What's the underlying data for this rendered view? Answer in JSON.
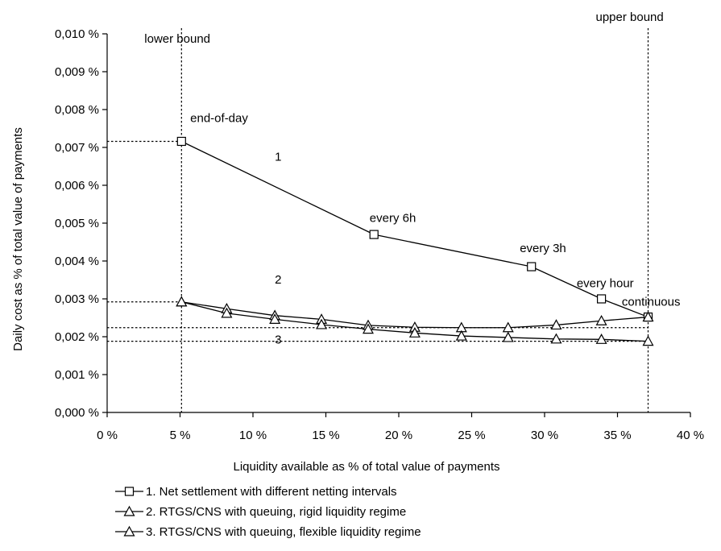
{
  "chart_data": {
    "type": "line",
    "xlabel": "Liquidity available as % of total value of payments",
    "ylabel": "Daily cost as % of total value of payments",
    "xlim": [
      0,
      40
    ],
    "ylim": [
      0,
      0.01
    ],
    "x_ticks": [
      0,
      5,
      10,
      15,
      20,
      25,
      30,
      35,
      40
    ],
    "x_tick_labels": [
      "0 %",
      "5 %",
      "10 %",
      "15 %",
      "20 %",
      "25 %",
      "30 %",
      "35 %",
      "40 %"
    ],
    "y_ticks": [
      0,
      0.001,
      0.002,
      0.003,
      0.004,
      0.005,
      0.006,
      0.007,
      0.008,
      0.009,
      0.01
    ],
    "y_tick_labels": [
      "0,000 %",
      "0,001 %",
      "0,002 %",
      "0,003 %",
      "0,004 %",
      "0,005 %",
      "0,006 %",
      "0,007 %",
      "0,008 %",
      "0,009 %",
      "0,010 %"
    ],
    "grid": false,
    "legend_position": "bottom",
    "series": [
      {
        "name": "1. Net settlement with different netting intervals",
        "marker": "square",
        "x": [
          5.1,
          18.3,
          29.1,
          33.9,
          37.1
        ],
        "y": [
          0.00716,
          0.0047,
          0.00385,
          0.003,
          0.00252
        ]
      },
      {
        "name": "2. RTGS/CNS with queuing, rigid liquidity regime",
        "marker": "triangle",
        "x": [
          5.1,
          8.2,
          11.5,
          14.7,
          17.9,
          21.1,
          24.3,
          27.5,
          30.8,
          33.9,
          37.1
        ],
        "y": [
          0.00292,
          0.00274,
          0.00256,
          0.00246,
          0.0023,
          0.00225,
          0.00224,
          0.00224,
          0.00231,
          0.00242,
          0.00252
        ]
      },
      {
        "name": "3. RTGS/CNS with queuing, flexible liquidity regime",
        "marker": "triangle",
        "x": [
          5.1,
          8.2,
          11.5,
          14.7,
          17.9,
          21.1,
          24.3,
          27.5,
          30.8,
          33.9,
          37.1
        ],
        "y": [
          0.00292,
          0.00262,
          0.00246,
          0.00232,
          0.0022,
          0.0021,
          0.00202,
          0.00198,
          0.00194,
          0.00193,
          0.00188
        ]
      }
    ],
    "reference_lines": {
      "vertical": [
        {
          "x": 5.1,
          "label": "lower bound"
        },
        {
          "x": 37.1,
          "label": "upper bound"
        }
      ],
      "horizontal": [
        {
          "y": 0.00716,
          "x_end": 5.1
        },
        {
          "y": 0.00292,
          "x_end": 5.1
        },
        {
          "y": 0.00224,
          "x_end": 37.1
        },
        {
          "y": 0.00188,
          "x_end": 37.1
        }
      ]
    },
    "annotations": [
      {
        "text": "end-of-day",
        "x": 5.7,
        "y": 0.00767
      },
      {
        "text": "1",
        "x": 11.5,
        "y": 0.00665
      },
      {
        "text": "every 6h",
        "x": 18.0,
        "y": 0.00503
      },
      {
        "text": "every 3h",
        "x": 28.3,
        "y": 0.00423
      },
      {
        "text": "every hour",
        "x": 32.2,
        "y": 0.00331
      },
      {
        "text": "continuous",
        "x": 35.3,
        "y": 0.00282
      },
      {
        "text": "2",
        "x": 11.5,
        "y": 0.0034
      },
      {
        "text": "3",
        "x": 11.5,
        "y": 0.00182
      }
    ]
  }
}
